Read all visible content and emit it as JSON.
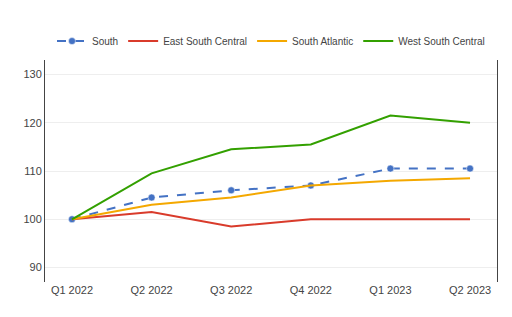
{
  "chart_data": {
    "type": "line",
    "categories": [
      "Q1 2022",
      "Q2 2022",
      "Q3 2022",
      "Q4 2022",
      "Q1 2023",
      "Q2 2023"
    ],
    "series": [
      {
        "name": "South",
        "color": "#4472C4",
        "line_style": "dashed",
        "marker": "circle",
        "values": [
          100,
          104.5,
          106,
          107,
          110.5,
          110.5
        ]
      },
      {
        "name": "East South Central",
        "color": "#D93B2B",
        "line_style": "solid",
        "values": [
          100,
          101.5,
          98.5,
          100,
          100,
          100
        ]
      },
      {
        "name": "South Atlantic",
        "color": "#F4A800",
        "line_style": "solid",
        "values": [
          100,
          103,
          104.5,
          107,
          108,
          108.5
        ]
      },
      {
        "name": "West South Central",
        "color": "#33A000",
        "line_style": "solid",
        "values": [
          100,
          109.5,
          114.5,
          115.5,
          121.5,
          120
        ]
      }
    ],
    "ylim": [
      87,
      133
    ],
    "yticks": [
      90,
      100,
      110,
      120,
      130
    ],
    "grid": true,
    "legend": "top"
  }
}
